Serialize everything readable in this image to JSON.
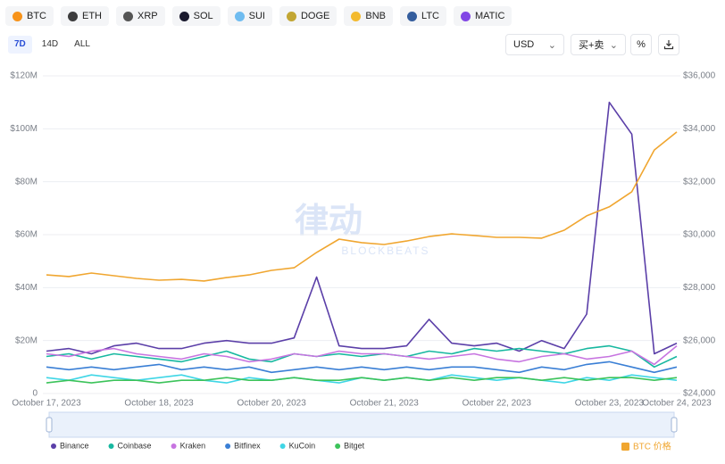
{
  "coin_tabs": [
    "BTC",
    "ETH",
    "XRP",
    "SOL",
    "SUI",
    "DOGE",
    "BNB",
    "LTC",
    "MATIC"
  ],
  "range_tabs": [
    "7D",
    "14D",
    "ALL"
  ],
  "currency": "USD",
  "side": "买+卖",
  "percent": "%",
  "watermark": {
    "brand": "律动",
    "sub": "BLOCKBEATS"
  },
  "chart_data": {
    "type": "line",
    "x": [
      0,
      0.2,
      0.4,
      0.6,
      0.8,
      1,
      1.2,
      1.4,
      1.6,
      1.8,
      2,
      2.2,
      2.4,
      2.6,
      2.8,
      3,
      3.2,
      3.4,
      3.6,
      3.8,
      4,
      4.2,
      4.4,
      4.6,
      4.8,
      5,
      5.2,
      5.4,
      5.6
    ],
    "xlim": [
      0,
      5.6
    ],
    "xticks": [
      {
        "value": 0,
        "label": "October 17, 2023"
      },
      {
        "value": 1,
        "label": "October 18, 2023"
      },
      {
        "value": 2,
        "label": "October 20, 2023"
      },
      {
        "value": 3,
        "label": "October 21, 2023"
      },
      {
        "value": 4,
        "label": "October 22, 2023"
      },
      {
        "value": 5,
        "label": "October 23, 2023"
      },
      {
        "value": 5.6,
        "label": "October 24, 2023"
      }
    ],
    "ylim": [
      0,
      120
    ],
    "yticks": [
      0,
      {
        "value": 20,
        "label": "$20M"
      },
      {
        "value": 40,
        "label": "$40M"
      },
      {
        "value": 60,
        "label": "$60M"
      },
      {
        "value": 80,
        "label": "$80M"
      },
      {
        "value": 100,
        "label": "$100M"
      },
      {
        "value": 120,
        "label": "$120M"
      }
    ],
    "y2lim": [
      24000,
      36000
    ],
    "y2ticks": [
      {
        "value": 24000,
        "label": "$24,000"
      },
      {
        "value": 26000,
        "label": "$26,000"
      },
      {
        "value": 28000,
        "label": "$28,000"
      },
      {
        "value": 30000,
        "label": "$30,000"
      },
      {
        "value": 32000,
        "label": "$32,000"
      },
      {
        "value": 34000,
        "label": "$34,000"
      },
      {
        "value": 36000,
        "label": "$36,000"
      }
    ],
    "grid": true,
    "series": [
      {
        "name": "Binance",
        "color": "#5b3fa8",
        "values": [
          16,
          17,
          15,
          18,
          19,
          17,
          17,
          19,
          20,
          19,
          19,
          21,
          44,
          18,
          17,
          17,
          18,
          28,
          19,
          18,
          19,
          16,
          20,
          17,
          30,
          110,
          98,
          15,
          19
        ]
      },
      {
        "name": "Coinbase",
        "color": "#17b8a0",
        "values": [
          14,
          15,
          13,
          15,
          14,
          13,
          12,
          14,
          16,
          13,
          12,
          15,
          14,
          15,
          14,
          15,
          14,
          16,
          15,
          17,
          16,
          17,
          16,
          15,
          17,
          18,
          16,
          10,
          14
        ]
      },
      {
        "name": "Kraken",
        "color": "#c774e0",
        "values": [
          15,
          14,
          16,
          17,
          15,
          14,
          13,
          15,
          14,
          12,
          13,
          15,
          14,
          16,
          15,
          15,
          14,
          13,
          14,
          15,
          13,
          12,
          14,
          15,
          13,
          14,
          16,
          11,
          18
        ]
      },
      {
        "name": "Bitfinex",
        "color": "#3a7fd5",
        "values": [
          10,
          9,
          10,
          9,
          10,
          11,
          9,
          10,
          9,
          10,
          8,
          9,
          10,
          9,
          10,
          9,
          10,
          9,
          10,
          10,
          9,
          8,
          10,
          9,
          11,
          12,
          10,
          8,
          10
        ]
      },
      {
        "name": "KuCoin",
        "color": "#3fd6e6",
        "values": [
          6,
          5,
          7,
          6,
          5,
          6,
          7,
          5,
          4,
          6,
          5,
          6,
          5,
          4,
          6,
          5,
          6,
          5,
          7,
          6,
          5,
          6,
          5,
          4,
          6,
          5,
          7,
          6,
          5
        ]
      },
      {
        "name": "Bitget",
        "color": "#3cc35a",
        "values": [
          4,
          5,
          4,
          5,
          5,
          4,
          5,
          5,
          6,
          5,
          5,
          6,
          5,
          5,
          6,
          5,
          6,
          5,
          6,
          5,
          6,
          6,
          5,
          6,
          5,
          6,
          6,
          5,
          6
        ]
      },
      {
        "name": "BTC 价格",
        "color": "#f0a630",
        "axis": "y2",
        "values": [
          28480,
          28420,
          28550,
          28450,
          28350,
          28280,
          28310,
          28250,
          28380,
          28480,
          28650,
          28750,
          29330,
          29830,
          29700,
          29630,
          29760,
          29930,
          30030,
          29970,
          29900,
          29900,
          29870,
          30170,
          30710,
          31050,
          31620,
          33200,
          33880
        ]
      }
    ]
  }
}
